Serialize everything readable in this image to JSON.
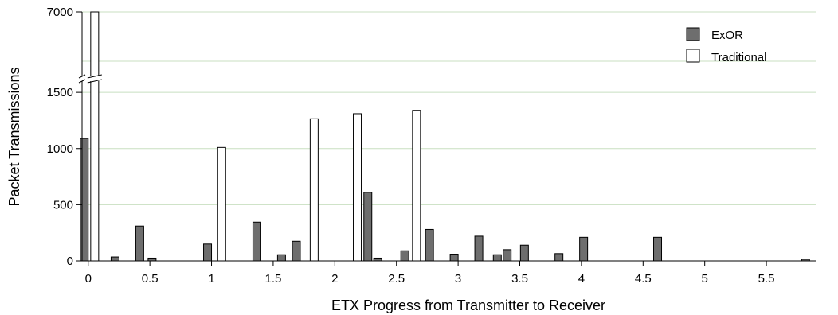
{
  "chart_data": {
    "type": "bar",
    "xlabel": "ETX Progress from Transmitter to Receiver",
    "ylabel": "Packet Transmissions",
    "x_ticks": [
      "0",
      "0.5",
      "1",
      "1.5",
      "2",
      "2.5",
      "3",
      "3.5",
      "4",
      "4.5",
      "5",
      "5.5"
    ],
    "y_ticks": [
      "0",
      "500",
      "1000",
      "1500",
      "7000"
    ],
    "xlim": [
      -0.05,
      5.9
    ],
    "y_axis_break": {
      "below": 1600,
      "above": 6800
    },
    "grid": "horizontal",
    "legend_position": "top-right",
    "series": [
      {
        "name": "ExOR",
        "color": "#6e6e6e",
        "points": [
          {
            "x": 0.0,
            "y": 1090
          },
          {
            "x": 0.25,
            "y": 35
          },
          {
            "x": 0.45,
            "y": 310
          },
          {
            "x": 0.55,
            "y": 25
          },
          {
            "x": 1.0,
            "y": 150
          },
          {
            "x": 1.4,
            "y": 345
          },
          {
            "x": 1.6,
            "y": 55
          },
          {
            "x": 1.72,
            "y": 175
          },
          {
            "x": 2.3,
            "y": 610
          },
          {
            "x": 2.38,
            "y": 25
          },
          {
            "x": 2.6,
            "y": 90
          },
          {
            "x": 2.8,
            "y": 280
          },
          {
            "x": 3.0,
            "y": 60
          },
          {
            "x": 3.2,
            "y": 220
          },
          {
            "x": 3.35,
            "y": 55
          },
          {
            "x": 3.43,
            "y": 100
          },
          {
            "x": 3.57,
            "y": 140
          },
          {
            "x": 3.85,
            "y": 65
          },
          {
            "x": 4.05,
            "y": 210
          },
          {
            "x": 4.65,
            "y": 210
          },
          {
            "x": 5.85,
            "y": 15
          }
        ]
      },
      {
        "name": "Traditional",
        "color": "#ffffff",
        "points": [
          {
            "x": 0.02,
            "y": 7000
          },
          {
            "x": 1.05,
            "y": 1010
          },
          {
            "x": 1.8,
            "y": 1265
          },
          {
            "x": 2.15,
            "y": 1310
          },
          {
            "x": 2.63,
            "y": 1340
          }
        ]
      }
    ]
  }
}
